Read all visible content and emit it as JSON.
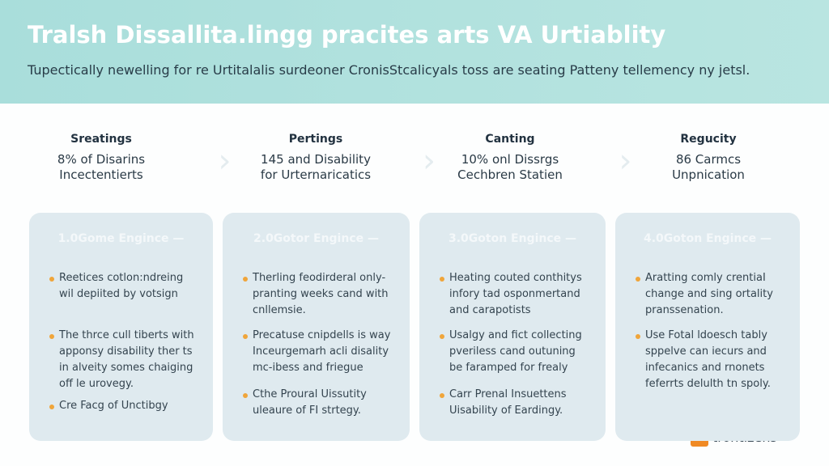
{
  "header": {
    "title": "Tralsh Dissallita.lingg pracites arts VA Urtiablity",
    "subtitle": "Tupectically newelling for re Urtitalalis surdeoner CronisStcalicyals toss are seating Patteny tellemency ny jetsl."
  },
  "stats": [
    {
      "label": "Sreatings",
      "lines": [
        "8% of Disarins",
        "Incectentierts"
      ]
    },
    {
      "label": "Pertings",
      "lines": [
        "145 and Disability",
        "for Urternaricatics"
      ]
    },
    {
      "label": "Canting",
      "lines": [
        "10% onl Dissrgs",
        "Cechbren Statien"
      ]
    },
    {
      "label": "Regucity",
      "lines": [
        "86 Carmcs",
        "Unpnication"
      ]
    }
  ],
  "cards": [
    {
      "title": "1.0Gome Engince —",
      "bullets": [
        [
          "Reetices cotlon:ndreing",
          "wil depiited by votsign"
        ],
        [
          "The thrce cull tiberts with",
          "apponsy disability ther ts",
          "in alveity somes chaiging",
          "off le urovegy."
        ],
        [
          "Cre Facg of Unctibgy"
        ]
      ]
    },
    {
      "title": "2.0Gotor Engince —",
      "bullets": [
        [
          "Therling feodirderal only-",
          "pranting weeks cand with",
          "cnllemsie."
        ],
        [
          "Precatuse cnipdells is way",
          "Inceurgemarh acli disality",
          "mc-ibess and friegue"
        ],
        [
          "Cthe Proural Uissutity",
          "uleaure of FI strtegy."
        ]
      ]
    },
    {
      "title": "3.0Goton Engince —",
      "bullets": [
        [
          "Heating couted conthitys",
          "infory tad osponmertand",
          "and carapotists"
        ],
        [
          "Usalgy and fict collecting",
          "pveriless cand outuning",
          "be faramped for frealy"
        ],
        [
          "Carr Prenal Insuettens",
          "Uisability of Eardingy."
        ]
      ]
    },
    {
      "title": "4.0Goton Engince —",
      "bullets": [
        [
          "Aratting comly crentiaI",
          "change and sing ortality",
          "pranssenation."
        ],
        [
          "Use Fotal ldoesch tably",
          "sppelve can iecurs and",
          "infecanics and rnonets",
          "feferrts delulth tn spoly."
        ]
      ]
    }
  ],
  "logo": {
    "icon": "V",
    "text": "trontizens"
  }
}
